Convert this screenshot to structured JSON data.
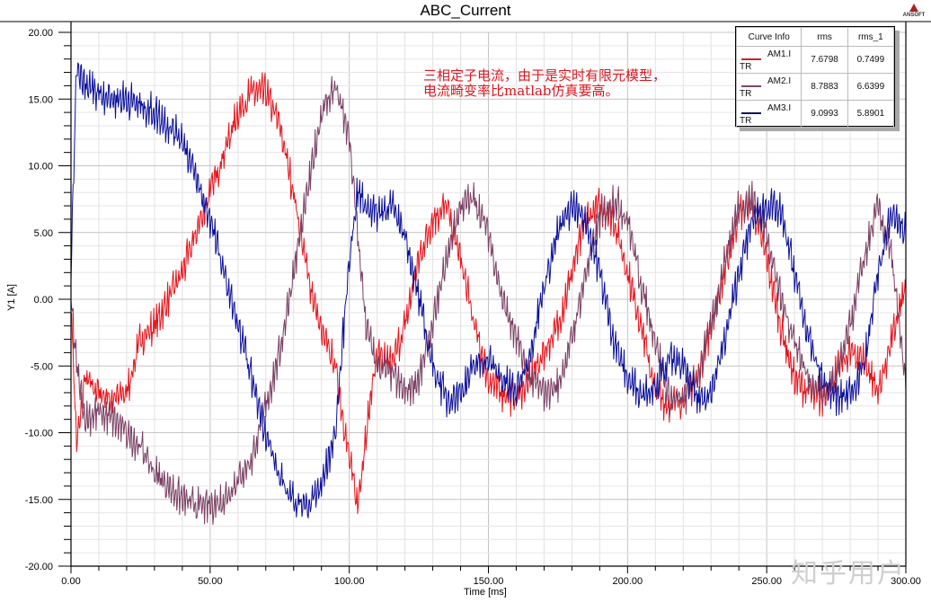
{
  "chart_data": {
    "type": "line",
    "title": "ABC_Current",
    "xlabel": "Time [ms]",
    "ylabel": "Y1 [A]",
    "xlim": [
      0,
      300
    ],
    "ylim": [
      -20,
      20
    ],
    "x_ticks": [
      "0.00",
      "50.00",
      "100.00",
      "150.00",
      "200.00",
      "250.00",
      "300.00"
    ],
    "y_ticks": [
      "20.00",
      "15.00",
      "10.00",
      "5.00",
      "0.00",
      "-5.00",
      "-10.00",
      "-15.00",
      "-20.00"
    ],
    "grid": true,
    "legend_position": "top-right",
    "legend": {
      "headers": [
        "Curve Info",
        "rms",
        "rms_1"
      ],
      "rows": [
        {
          "name": "AM1.I",
          "sub": "TR",
          "rms": "7.6798",
          "rms_1": "0.7499",
          "color": "#e8141c"
        },
        {
          "name": "AM2.I",
          "sub": "TR",
          "rms": "8.7883",
          "rms_1": "6.6399",
          "color": "#7a3f63"
        },
        {
          "name": "AM3.I",
          "sub": "TR",
          "rms": "9.0993",
          "rms_1": "5.8901",
          "color": "#0b0f9a"
        }
      ]
    },
    "annotation": "三相定子电流，由于是实时有限元模型，\n电流畸变率比matlab仿真要高。",
    "series": [
      {
        "name": "AM1.I",
        "color": "#e8141c",
        "noise": 1.6,
        "x": [
          0,
          2,
          5,
          10,
          15,
          20,
          25,
          30,
          35,
          40,
          45,
          50,
          55,
          60,
          65,
          70,
          75,
          80,
          85,
          90,
          95,
          100,
          103,
          106,
          110,
          115,
          120,
          125,
          130,
          135,
          140,
          145,
          150,
          155,
          160,
          165,
          170,
          175,
          180,
          185,
          190,
          195,
          200,
          205,
          210,
          215,
          220,
          225,
          230,
          235,
          240,
          245,
          250,
          255,
          260,
          265,
          270,
          275,
          280,
          285,
          290,
          295,
          300
        ],
        "y": [
          0,
          -11,
          -6,
          -7,
          -7.5,
          -7,
          -3,
          -2,
          0,
          2,
          5,
          8,
          11,
          14,
          15.5,
          15.5,
          13,
          8,
          2,
          -2.5,
          -5,
          -12,
          -15.5,
          -10,
          -4,
          -5,
          -2,
          3,
          6,
          7,
          3,
          -2,
          -6,
          -7,
          -7.5,
          -6,
          -4,
          -2,
          2,
          6,
          7,
          6,
          2,
          -2,
          -7,
          -8,
          -7.5,
          -6,
          -2,
          2,
          6.5,
          7,
          3,
          -2,
          -6,
          -7,
          -7.5,
          -5.5,
          -4,
          -4.5,
          -7,
          -3,
          1
        ]
      },
      {
        "name": "AM2.I",
        "color": "#7a3f63",
        "noise": 1.6,
        "x": [
          0,
          2,
          5,
          10,
          15,
          20,
          25,
          30,
          35,
          40,
          45,
          50,
          55,
          60,
          65,
          70,
          75,
          80,
          85,
          90,
          95,
          100,
          103,
          106,
          110,
          115,
          120,
          125,
          130,
          135,
          140,
          145,
          150,
          155,
          160,
          165,
          170,
          175,
          180,
          185,
          190,
          195,
          200,
          205,
          210,
          215,
          220,
          225,
          230,
          235,
          240,
          245,
          250,
          255,
          260,
          265,
          270,
          275,
          280,
          285,
          290,
          295,
          300
        ],
        "y": [
          0,
          -5,
          -9,
          -8.5,
          -9,
          -10,
          -11,
          -13,
          -14,
          -15,
          -15.5,
          -15.5,
          -15,
          -13.5,
          -12,
          -8,
          -4,
          2,
          8,
          14,
          16,
          12,
          5,
          -2,
          -5,
          -5.5,
          -7,
          -6,
          -2,
          3,
          7,
          7.5,
          5,
          0,
          -3,
          -6,
          -7,
          -6.5,
          -3,
          2,
          6,
          7.5,
          6,
          1,
          -3,
          -7.5,
          -7.5,
          -6,
          -2,
          3,
          7,
          7.5,
          5,
          0,
          -3,
          -6,
          -7,
          -6,
          -2,
          3,
          7,
          3,
          -6.5
        ]
      },
      {
        "name": "AM3.I",
        "color": "#0b0f9a",
        "noise": 1.6,
        "x": [
          0,
          1,
          2,
          5,
          10,
          15,
          20,
          25,
          30,
          35,
          40,
          45,
          50,
          55,
          60,
          65,
          70,
          75,
          80,
          85,
          90,
          95,
          100,
          103,
          106,
          110,
          115,
          120,
          125,
          130,
          135,
          140,
          145,
          150,
          155,
          160,
          165,
          170,
          175,
          180,
          185,
          190,
          195,
          200,
          205,
          210,
          215,
          220,
          225,
          230,
          235,
          240,
          245,
          250,
          255,
          260,
          265,
          270,
          275,
          280,
          285,
          290,
          295,
          300
        ],
        "y": [
          2,
          10,
          17,
          16,
          15.5,
          15,
          15,
          14.5,
          14,
          13,
          12,
          9,
          6,
          2,
          -2,
          -6,
          -10,
          -13.5,
          -15,
          -15.5,
          -14,
          -10,
          3,
          8,
          7,
          6.5,
          7,
          5,
          0,
          -5,
          -7.5,
          -7,
          -5,
          -4.5,
          -6,
          -7,
          -4,
          1,
          5,
          7,
          6,
          2,
          -3,
          -6,
          -7,
          -6.5,
          -4.5,
          -5,
          -7.5,
          -7,
          -3,
          2,
          6,
          7,
          6.5,
          2,
          -3,
          -6,
          -7.5,
          -7,
          -5,
          2,
          6.5,
          5
        ]
      }
    ]
  },
  "header": {
    "title": "ABC_Current",
    "logo_text": "ANSOFT"
  },
  "axes": {
    "xlabel": "Time [ms]",
    "ylabel": "Y1 [A]"
  },
  "legend": {
    "h0": "Curve Info",
    "h1": "rms",
    "h2": "rms_1",
    "r0": {
      "name": "AM1.I",
      "sub": "TR",
      "rms": "7.6798",
      "rms_1": "0.7499"
    },
    "r1": {
      "name": "AM2.I",
      "sub": "TR",
      "rms": "8.7883",
      "rms_1": "6.6399"
    },
    "r2": {
      "name": "AM3.I",
      "sub": "TR",
      "rms": "9.0993",
      "rms_1": "5.8901"
    }
  },
  "annotation": "三相定子电流，由于是实时有限元模型，\n电流畸变率比matlab仿真要高。",
  "watermark": "知乎用户"
}
